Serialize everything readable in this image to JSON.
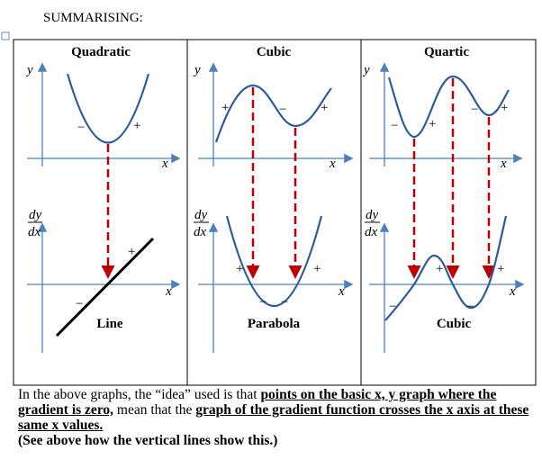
{
  "heading": "SUMMARISING:",
  "panels": [
    {
      "title": "Quadratic",
      "upper_axes": [
        "y",
        "x"
      ],
      "upper_signs": [
        "−",
        "+"
      ],
      "lower_axes": [
        "dy",
        "dx",
        "x"
      ],
      "lower_signs": [
        "+",
        "−"
      ],
      "caption": "Line"
    },
    {
      "title": "Cubic",
      "upper_axes": [
        "y",
        "x"
      ],
      "upper_signs": [
        "+",
        "−",
        "+"
      ],
      "lower_axes": [
        "dy",
        "dx",
        "x"
      ],
      "lower_signs": [
        "+",
        "+",
        "−",
        "−"
      ],
      "caption": "Parabola"
    },
    {
      "title": "Quartic",
      "upper_axes": [
        "y",
        "x"
      ],
      "upper_signs": [
        "−",
        "+",
        "−",
        "+"
      ],
      "lower_axes": [
        "dy",
        "dx",
        "x"
      ],
      "lower_signs": [
        "+",
        "+",
        "−",
        "−"
      ],
      "caption": "Cubic"
    }
  ],
  "paragraph": {
    "parts": [
      "In the above graphs, the “idea” used is that ",
      "points on the basic x, y graph where the gradient is zero,",
      " mean that the ",
      "graph of the gradient function crosses the x axis at these same x values."
    ],
    "note": "(See above how the vertical lines show this.)"
  }
}
